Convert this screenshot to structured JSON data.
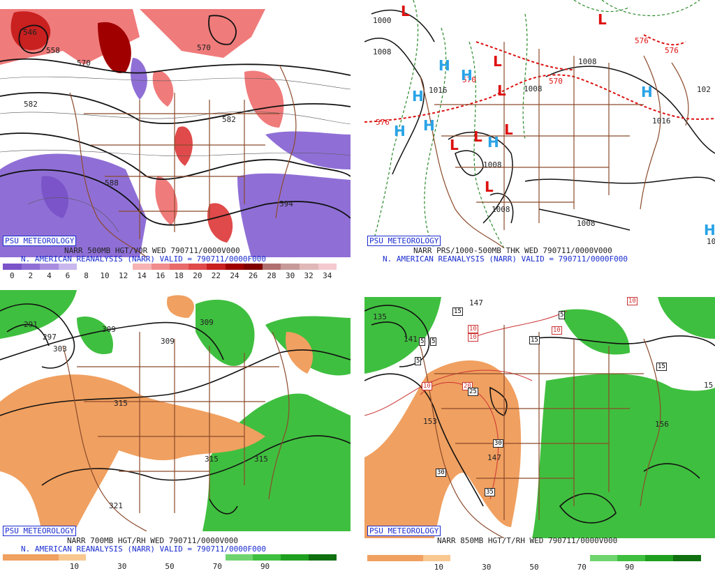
{
  "brand": "PSU METEOROLOGY",
  "panels": [
    {
      "id": "vor500",
      "title_line1": "NARR 500MB HGT/VOR WED 790711/0000V000",
      "title_line2": "N. AMERICAN REANALYSIS (NARR) VALID = 790711/0000F000",
      "colorbar_labels": [
        "0",
        "2",
        "4",
        "6",
        "8",
        "10",
        "12",
        "14",
        "16",
        "18",
        "20",
        "22",
        "24",
        "26",
        "28",
        "30",
        "32",
        "34"
      ],
      "colorbar_colors": [
        "#7b54c9",
        "#8f6fd6",
        "#a98ee0",
        "#c8b8ee",
        "#ffffff",
        "#ffffff",
        "#ffffff",
        "#f7b3b3",
        "#f08c8c",
        "#e86a6a",
        "#e04a4a",
        "#c92020",
        "#a00000",
        "#800000",
        "#b07070",
        "#c79a9a",
        "#e0b8b8",
        "#f5c9d0"
      ],
      "contour_labels": [
        "546",
        "558",
        "570",
        "570",
        "582",
        "582",
        "588",
        "594"
      ]
    },
    {
      "id": "thk",
      "title_line1": "NARR PRS/1000-500MB THK WED 790711/0000V000",
      "title_line2": "N. AMERICAN REANALYSIS (NARR) VALID = 790711/0000F000",
      "contour_labels": [
        "1000",
        "1008",
        "1016",
        "1008",
        "1008",
        "1008",
        "1008",
        "1016",
        "1008",
        "576",
        "576",
        "576",
        "570",
        "570",
        "102",
        "10"
      ],
      "H_symbol": "H",
      "L_symbol": "L"
    },
    {
      "id": "rh700",
      "title_line1": "NARR 700MB HGT/RH WED 790711/0000V000",
      "title_line2": "N. AMERICAN REANALYSIS (NARR) VALID = 790711/0000F000",
      "colorbar_labels": [
        "10",
        "30",
        "50",
        "70",
        "90"
      ],
      "colorbar_colors": [
        "#f0a060",
        "#f0a060",
        "#f8c890",
        "#ffffff",
        "#ffffff",
        "#ffffff",
        "#ffffff",
        "#ffffff",
        "#6fd46f",
        "#3fbf3f",
        "#1f9f1f",
        "#107010"
      ],
      "contour_labels": [
        "291",
        "297",
        "303",
        "309",
        "309",
        "315",
        "315",
        "315",
        "321",
        "309"
      ]
    },
    {
      "id": "t850",
      "title_line1": "NARR 850MB HGT/T/RH WED 790711/0000V000",
      "colorbar_labels": [
        "10",
        "30",
        "50",
        "70",
        "90"
      ],
      "colorbar_colors": [
        "#f0a060",
        "#f0a060",
        "#f8c890",
        "#ffffff",
        "#ffffff",
        "#ffffff",
        "#ffffff",
        "#ffffff",
        "#6fd46f",
        "#3fbf3f",
        "#1f9f1f",
        "#107010"
      ],
      "contour_labels": [
        "135",
        "141",
        "147",
        "153",
        "147",
        "156",
        "15"
      ],
      "temp_labels": [
        "15",
        "5",
        "5",
        "5",
        "10",
        "10",
        "15",
        "5",
        "10",
        "15",
        "20",
        "25",
        "30",
        "30",
        "35",
        "10",
        "10"
      ]
    }
  ]
}
